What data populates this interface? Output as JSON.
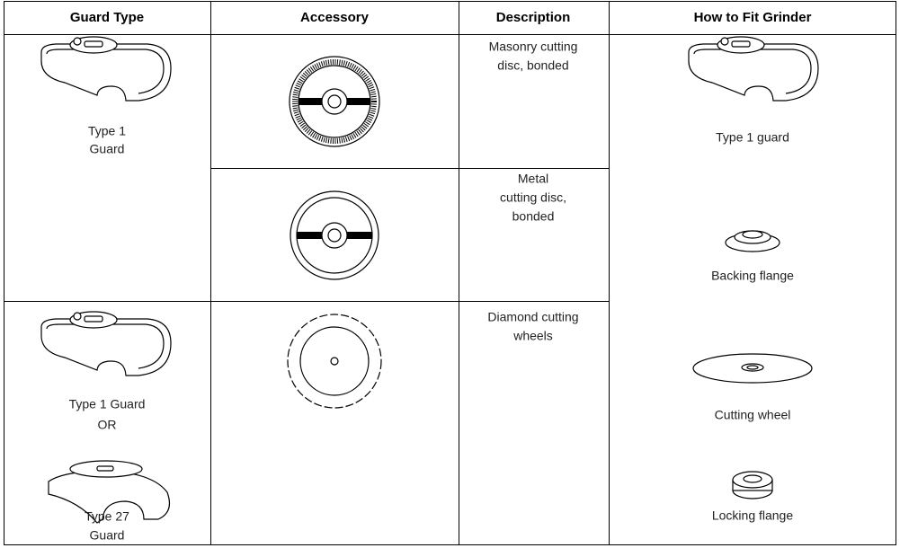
{
  "table": {
    "headers": [
      "Guard Type",
      "Accessory",
      "Description",
      "How to Fit Grinder"
    ],
    "guard_cells": [
      {
        "items": [
          {
            "label": [
              "Type 1",
              "Guard"
            ]
          }
        ]
      },
      {
        "items": [
          {
            "label": [
              "Type 1 Guard",
              "OR"
            ]
          },
          {
            "label": [
              "Type 27",
              "Guard"
            ]
          }
        ]
      }
    ],
    "descriptions": [
      [
        "Masonry cutting",
        "disc, bonded"
      ],
      [
        "Metal",
        "cutting disc,",
        "bonded"
      ],
      [
        "Diamond cutting",
        "wheels"
      ]
    ],
    "fit_steps": [
      "Type 1 guard",
      "Backing flange",
      "Cutting wheel",
      "Locking flange"
    ]
  }
}
